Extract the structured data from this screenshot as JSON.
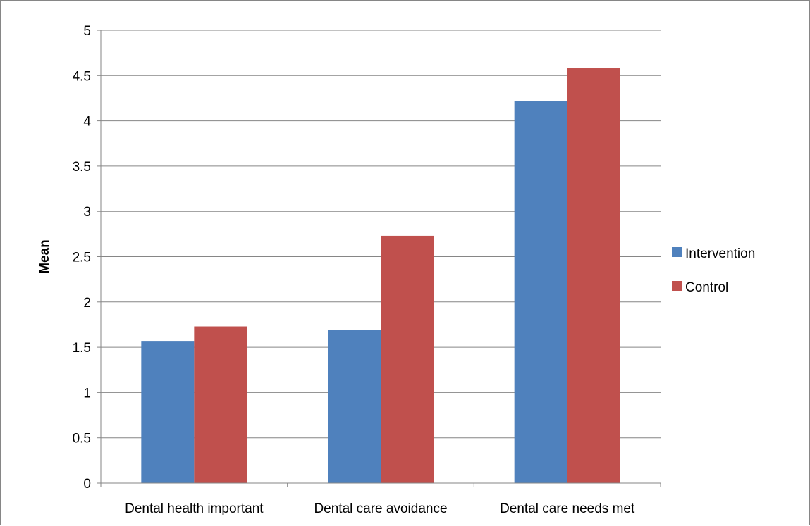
{
  "chart_data": {
    "type": "bar",
    "title": "",
    "xlabel": "",
    "ylabel": "Mean",
    "ylim": [
      0,
      5
    ],
    "ytick_step": 0.5,
    "yticks": [
      "0",
      "0.5",
      "1",
      "1.5",
      "2",
      "2.5",
      "3",
      "3.5",
      "4",
      "4.5",
      "5"
    ],
    "grid": true,
    "legend_position": "right",
    "categories": [
      "Dental health important",
      "Dental care avoidance",
      "Dental care needs met"
    ],
    "series": [
      {
        "name": "Intervention",
        "color": "#4F81BD",
        "values": [
          1.57,
          1.69,
          4.22
        ]
      },
      {
        "name": "Control",
        "color": "#C0504D",
        "values": [
          1.73,
          2.73,
          4.58
        ]
      }
    ]
  }
}
